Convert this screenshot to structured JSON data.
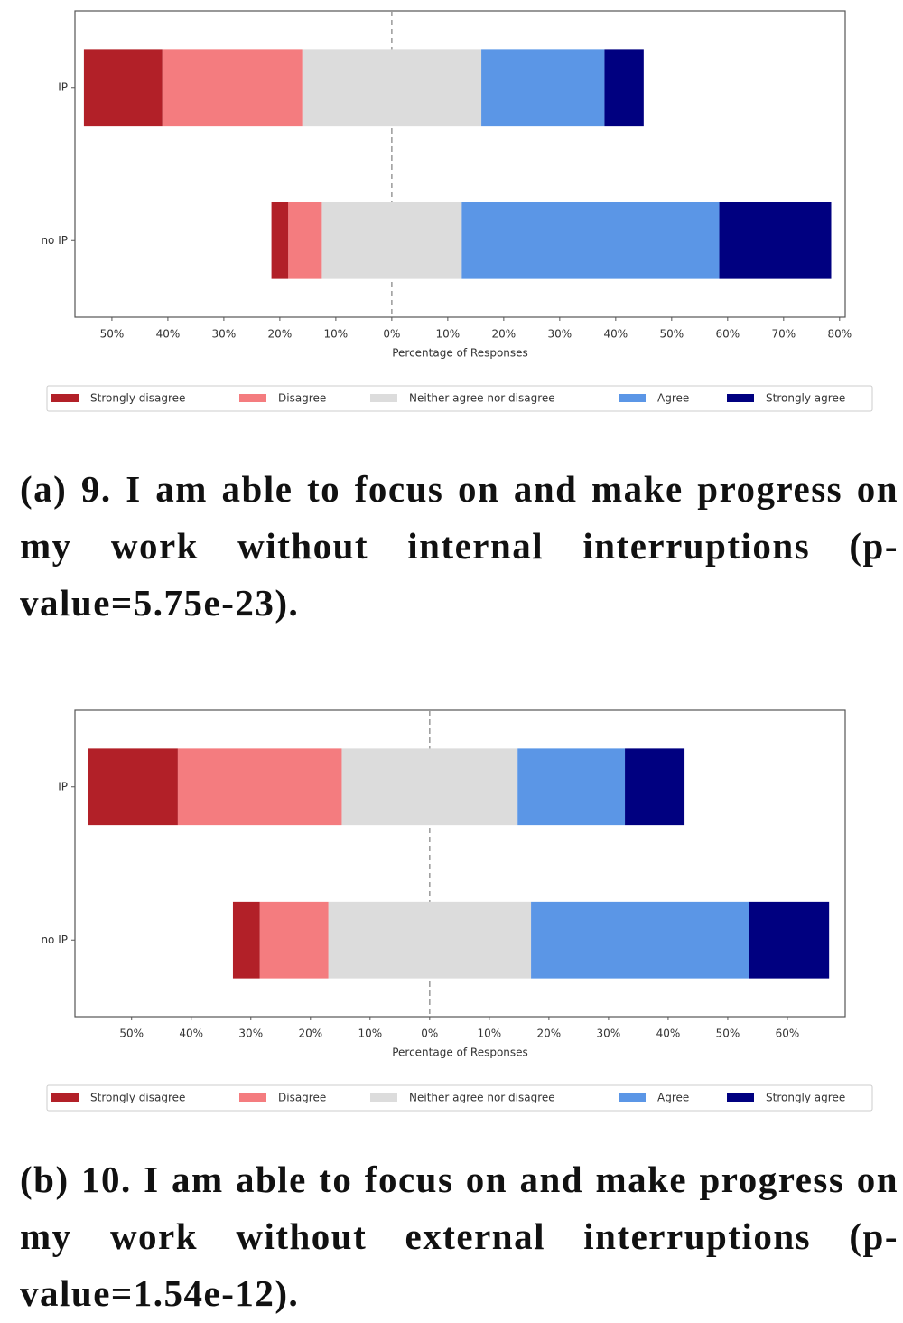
{
  "chart_data": [
    {
      "type": "bar",
      "xlabel": "Percentage of Responses",
      "categories": [
        "IP",
        "no IP"
      ],
      "series": [
        {
          "name": "Strongly disagree",
          "color": "#b22028",
          "values": [
            14,
            3
          ]
        },
        {
          "name": "Disagree",
          "color": "#f47c7f",
          "values": [
            25,
            6
          ]
        },
        {
          "name": "Neither agree nor disagree",
          "color": "#dcdcdc",
          "values": [
            32,
            25
          ]
        },
        {
          "name": "Agree",
          "color": "#5b96e6",
          "values": [
            22,
            46
          ]
        },
        {
          "name": "Strongly agree",
          "color": "#000080",
          "values": [
            7,
            20
          ]
        }
      ],
      "xlim": [
        -56.6,
        81
      ],
      "xticks": [
        {
          "value": -50,
          "label": "50%"
        },
        {
          "value": -40,
          "label": "40%"
        },
        {
          "value": -30,
          "label": "30%"
        },
        {
          "value": -20,
          "label": "20%"
        },
        {
          "value": -10,
          "label": "10%"
        },
        {
          "value": 0,
          "label": "0%"
        },
        {
          "value": 10,
          "label": "10%"
        },
        {
          "value": 20,
          "label": "20%"
        },
        {
          "value": 30,
          "label": "30%"
        },
        {
          "value": 40,
          "label": "40%"
        },
        {
          "value": 50,
          "label": "50%"
        },
        {
          "value": 60,
          "label": "60%"
        },
        {
          "value": 70,
          "label": "70%"
        },
        {
          "value": 80,
          "label": "80%"
        }
      ],
      "caption": "(a) 9. I am able to focus on and make progress on my work without internal interruptions (p-value=5.75e-23)."
    },
    {
      "type": "bar",
      "xlabel": "Percentage of Responses",
      "categories": [
        "IP",
        "no IP"
      ],
      "series": [
        {
          "name": "Strongly disagree",
          "color": "#b22028",
          "values": [
            15,
            4.5
          ]
        },
        {
          "name": "Disagree",
          "color": "#f47c7f",
          "values": [
            27.5,
            11.5
          ]
        },
        {
          "name": "Neither agree nor disagree",
          "color": "#dcdcdc",
          "values": [
            29.5,
            34
          ]
        },
        {
          "name": "Agree",
          "color": "#5b96e6",
          "values": [
            18,
            36.5
          ]
        },
        {
          "name": "Strongly agree",
          "color": "#000080",
          "values": [
            10,
            13.5
          ]
        }
      ],
      "xlim": [
        -59.5,
        69.7
      ],
      "xticks": [
        {
          "value": -50,
          "label": "50%"
        },
        {
          "value": -40,
          "label": "40%"
        },
        {
          "value": -30,
          "label": "30%"
        },
        {
          "value": -20,
          "label": "20%"
        },
        {
          "value": -10,
          "label": "10%"
        },
        {
          "value": 0,
          "label": "0%"
        },
        {
          "value": 10,
          "label": "10%"
        },
        {
          "value": 20,
          "label": "20%"
        },
        {
          "value": 30,
          "label": "30%"
        },
        {
          "value": 40,
          "label": "40%"
        },
        {
          "value": 50,
          "label": "50%"
        },
        {
          "value": 60,
          "label": "60%"
        }
      ],
      "caption": "(b) 10. I am able to focus on and make progress on my work without external interruptions (p-value=1.54e-12)."
    }
  ]
}
